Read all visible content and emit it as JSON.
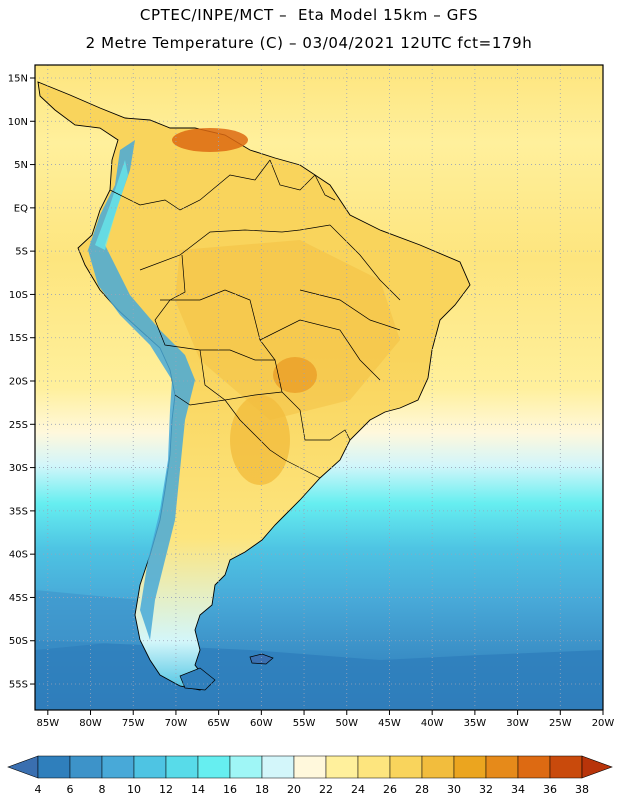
{
  "header": {
    "line1": "CPTEC/INPE/MCT –  Eta Model 15km – GFS",
    "line2": "2 Metre Temperature (C) – 03/04/2021 12UTC fct=179h"
  },
  "map": {
    "lat_labels": [
      "15N",
      "10N",
      "5N",
      "EQ",
      "5S",
      "10S",
      "15S",
      "20S",
      "25S",
      "30S",
      "35S",
      "40S",
      "45S",
      "50S",
      "55S"
    ],
    "lon_labels": [
      "85W",
      "80W",
      "75W",
      "70W",
      "65W",
      "60W",
      "55W",
      "50W",
      "45W",
      "40W",
      "35W",
      "30W",
      "25W",
      "20W"
    ],
    "lat_range": [
      -58,
      16.5
    ],
    "lon_range": [
      -86.5,
      -20
    ],
    "colorbar": {
      "levels": [
        "4",
        "6",
        "8",
        "10",
        "12",
        "14",
        "16",
        "18",
        "20",
        "22",
        "24",
        "26",
        "28",
        "30",
        "32",
        "34",
        "36",
        "38"
      ],
      "colors": [
        "#3a6fb0",
        "#2f7fbc",
        "#3d93c9",
        "#48a9d8",
        "#4ec4e3",
        "#58dbe9",
        "#66eef0",
        "#9ff6f6",
        "#d3f6fa",
        "#fff8dc",
        "#fff09c",
        "#fde57e",
        "#f9d45c",
        "#f2bd3d",
        "#eba51f",
        "#e68a1a",
        "#dd6a12",
        "#c94a0c",
        "#b8340a"
      ]
    }
  }
}
